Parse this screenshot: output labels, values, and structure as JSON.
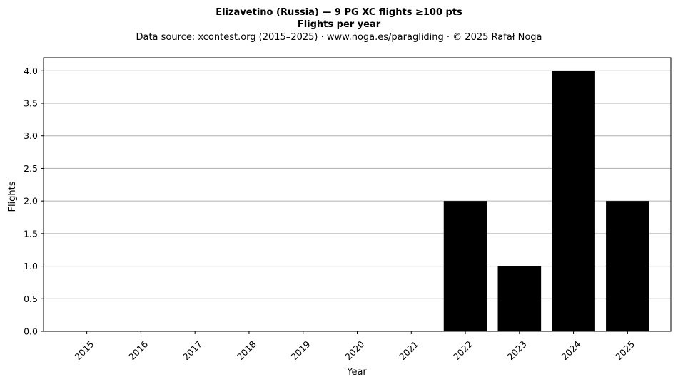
{
  "chart_data": {
    "type": "bar",
    "title": "Elizavetino (Russia)  —  9 PG XC flights ≥100 pts",
    "subtitle": "Flights per year",
    "source": "Data source: xcontest.org (2015–2025)  ·  www.noga.es/paragliding  ·  © 2025 Rafał Noga",
    "xlabel": "Year",
    "ylabel": "Flights",
    "categories": [
      "2015",
      "2016",
      "2017",
      "2018",
      "2019",
      "2020",
      "2021",
      "2022",
      "2023",
      "2024",
      "2025"
    ],
    "values": [
      0,
      0,
      0,
      0,
      0,
      0,
      0,
      2,
      1,
      4,
      2
    ],
    "ylim": [
      0,
      4.2
    ],
    "yticks": [
      "0.0",
      "0.5",
      "1.0",
      "1.5",
      "2.0",
      "2.5",
      "3.0",
      "3.5",
      "4.0"
    ],
    "grid": "horizontal",
    "bar_color": "#000000",
    "grid_color": "#b0b0b0"
  }
}
